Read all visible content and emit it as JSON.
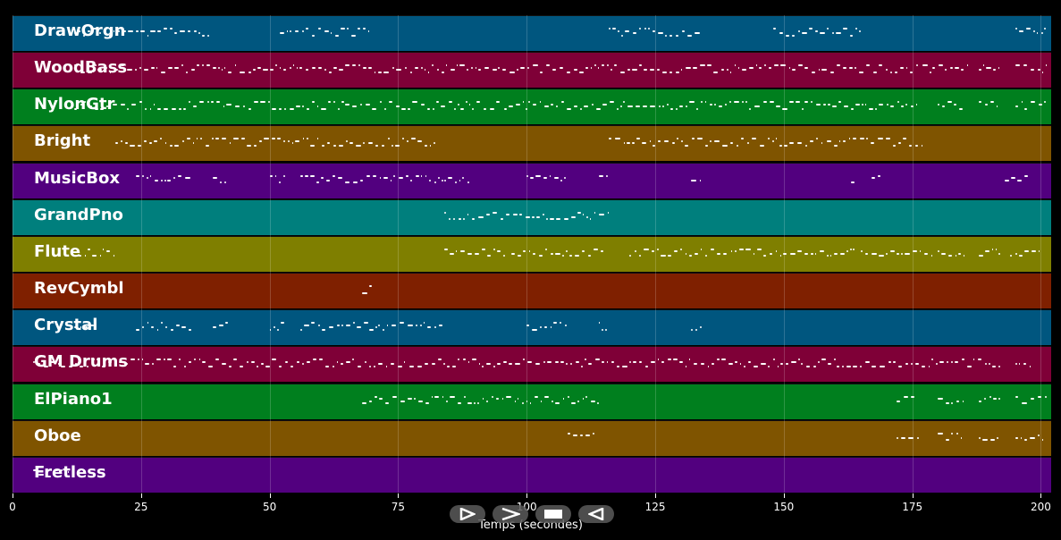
{
  "tracks": [
    {
      "label": "DrawOrgn",
      "color": "#00567f"
    },
    {
      "label": "WoodBass",
      "color": "#7f0037"
    },
    {
      "label": "NylonGtr",
      "color": "#007f1e"
    },
    {
      "label": "Bright",
      "color": "#7f5400"
    },
    {
      "label": "MusicBox",
      "color": "#52007f"
    },
    {
      "label": "GrandPno",
      "color": "#007f7d"
    },
    {
      "label": "Flute",
      "color": "#7f7f00"
    },
    {
      "label": "RevCymbl",
      "color": "#7f2000"
    },
    {
      "label": "Crystal",
      "color": "#00567f"
    },
    {
      "label": "GM Drums",
      "color": "#7f0037"
    },
    {
      "label": "ElPiano1",
      "color": "#007f1e"
    },
    {
      "label": "Oboe",
      "color": "#7f5400"
    },
    {
      "label": "Fretless",
      "color": "#52007f"
    }
  ],
  "axis": {
    "min": 0,
    "max": 202,
    "ticks": [
      "0",
      "25",
      "50",
      "75",
      "100",
      "125",
      "150",
      "175",
      "200"
    ],
    "label": "Temps (secondes)"
  },
  "controls": [
    {
      "name": "play-outline-icon"
    },
    {
      "name": "play-icon"
    },
    {
      "name": "stop-icon"
    },
    {
      "name": "rewind-icon"
    }
  ],
  "notes": [
    {
      "track": 0,
      "spans": [
        [
          12,
          38
        ],
        [
          52,
          70
        ],
        [
          116,
          134
        ],
        [
          148,
          165
        ],
        [
          195,
          201
        ]
      ]
    },
    {
      "track": 1,
      "spans": [
        [
          12,
          176
        ],
        [
          177,
          186
        ],
        [
          188,
          192
        ],
        [
          195,
          201
        ]
      ]
    },
    {
      "track": 2,
      "spans": [
        [
          12,
          176
        ],
        [
          180,
          185
        ],
        [
          188,
          192
        ],
        [
          195,
          201
        ]
      ]
    },
    {
      "track": 3,
      "spans": [
        [
          20,
          82
        ],
        [
          116,
          177
        ]
      ]
    },
    {
      "track": 4,
      "spans": [
        [
          24,
          35
        ],
        [
          39,
          42
        ],
        [
          50,
          53
        ],
        [
          56,
          84
        ],
        [
          84,
          89
        ],
        [
          100,
          108
        ],
        [
          114,
          116
        ],
        [
          132,
          134
        ],
        [
          163,
          164
        ],
        [
          167,
          169
        ],
        [
          193,
          198
        ]
      ]
    },
    {
      "track": 5,
      "spans": [
        [
          84,
          116
        ]
      ]
    },
    {
      "track": 6,
      "spans": [
        [
          12,
          20
        ],
        [
          84,
          96
        ],
        [
          97,
          115
        ],
        [
          120,
          164
        ],
        [
          165,
          179
        ],
        [
          180,
          185
        ],
        [
          188,
          192
        ],
        [
          194,
          200
        ]
      ]
    },
    {
      "track": 7,
      "spans": [
        [
          68,
          70
        ]
      ]
    },
    {
      "track": 8,
      "spans": [
        [
          12,
          16
        ],
        [
          24,
          35
        ],
        [
          39,
          42
        ],
        [
          50,
          53
        ],
        [
          56,
          84
        ],
        [
          100,
          108
        ],
        [
          114,
          116
        ],
        [
          132,
          134
        ]
      ]
    },
    {
      "track": 9,
      "spans": [
        [
          4,
          192
        ],
        [
          195,
          198
        ]
      ]
    },
    {
      "track": 10,
      "spans": [
        [
          68,
          114
        ],
        [
          172,
          176
        ],
        [
          180,
          185
        ],
        [
          188,
          192
        ],
        [
          195,
          201
        ]
      ]
    },
    {
      "track": 11,
      "spans": [
        [
          108,
          113
        ],
        [
          172,
          176
        ],
        [
          180,
          185
        ],
        [
          188,
          192
        ],
        [
          195,
          201
        ]
      ]
    },
    {
      "track": 12,
      "spans": [
        [
          4,
          11
        ]
      ]
    }
  ]
}
